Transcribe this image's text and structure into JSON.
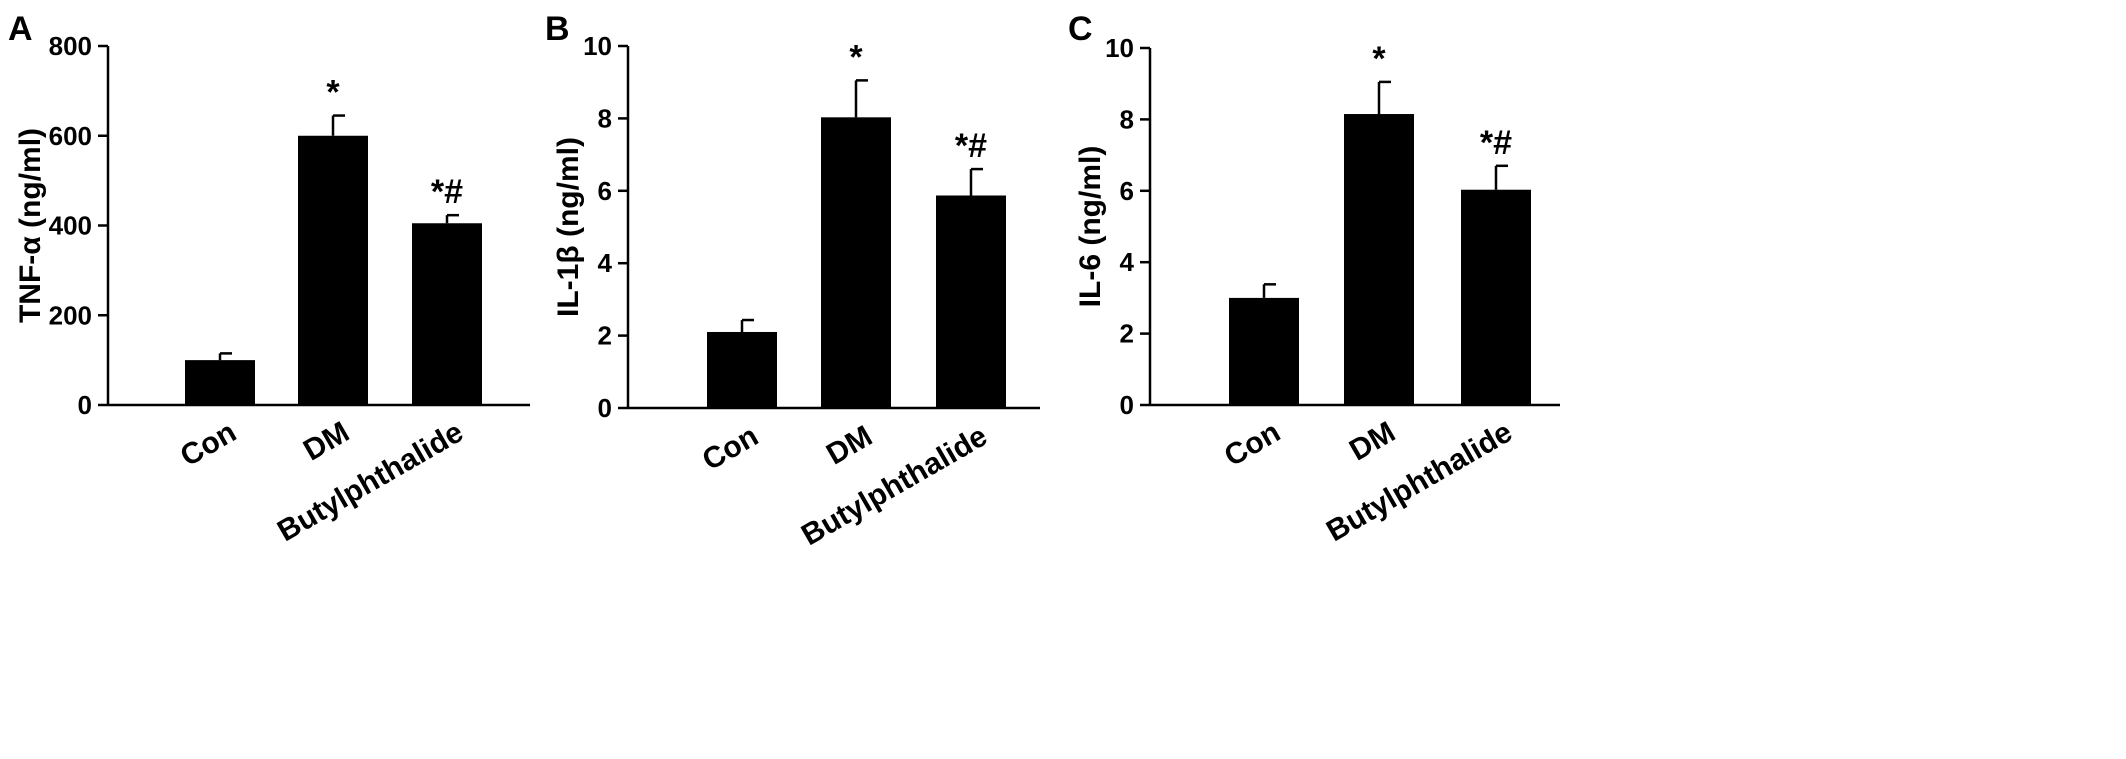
{
  "chart_data": [
    {
      "type": "bar",
      "panel_label": "A",
      "categories": [
        "Con",
        "DM",
        "Butylphthalide"
      ],
      "values": [
        100,
        600,
        405
      ],
      "errors": [
        15,
        45,
        18
      ],
      "annotations": [
        "",
        "*",
        "*#"
      ],
      "ylabel": "TNF-α (ng/ml)",
      "ylim": [
        0,
        800
      ],
      "yticks": [
        0,
        200,
        400,
        600,
        800
      ],
      "bar_color": "#000000",
      "grid": false
    },
    {
      "type": "bar",
      "panel_label": "B",
      "categories": [
        "Con",
        "DM",
        "Butylphthalide"
      ],
      "values": [
        2.1,
        8.03,
        5.87
      ],
      "errors": [
        0.33,
        1.02,
        0.73
      ],
      "annotations": [
        "",
        "*",
        "*#"
      ],
      "ylabel": "IL-1β (ng/ml)",
      "ylim": [
        0,
        10
      ],
      "yticks": [
        0,
        2,
        4,
        6,
        8,
        10
      ],
      "bar_color": "#000000",
      "grid": false
    },
    {
      "type": "bar",
      "panel_label": "C",
      "categories": [
        "Con",
        "DM",
        "Butylphthalide"
      ],
      "values": [
        3.0,
        8.15,
        6.03
      ],
      "errors": [
        0.38,
        0.9,
        0.67
      ],
      "annotations": [
        "",
        "*",
        "*#"
      ],
      "ylabel": "IL-6 (ng/ml)",
      "ylim": [
        0,
        10
      ],
      "yticks": [
        0,
        2,
        4,
        6,
        8,
        10
      ],
      "bar_color": "#000000",
      "grid": false
    }
  ]
}
